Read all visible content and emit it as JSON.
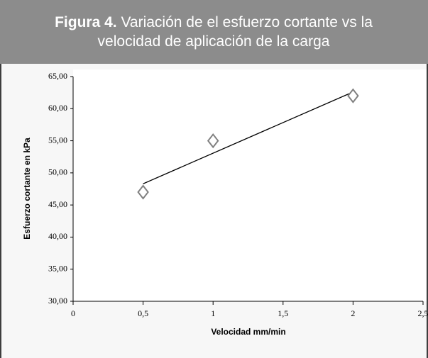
{
  "chart_data": {
    "type": "scatter",
    "figure_label": "Figura 4.",
    "title": "Variación de el esfuerzo cortante vs la velocidad de aplicación de la carga",
    "xlabel": "Velocidad mm/min",
    "ylabel": "Esfuerzo cortante en kPa",
    "series": [
      {
        "color": "#808080",
        "x": [
          0.5,
          1,
          2
        ],
        "values": [
          47,
          55,
          62
        ]
      }
    ],
    "trendline": {
      "color": "#000000",
      "x": [
        0.5,
        2
      ],
      "values": [
        48.3,
        62.6
      ]
    },
    "xlim": [
      0,
      2.5
    ],
    "xticks": [
      0,
      {
        "value": 0.5,
        "label": "0,5"
      },
      1,
      {
        "value": 1.5,
        "label": "1,5"
      },
      2,
      {
        "value": 2.5,
        "label": "2,5"
      }
    ],
    "ylim": [
      30,
      65
    ],
    "yticks": [
      {
        "value": 30,
        "label": "30,00"
      },
      {
        "value": 35,
        "label": "35,00"
      },
      {
        "value": 40,
        "label": "40,00"
      },
      {
        "value": 45,
        "label": "45,00"
      },
      {
        "value": 50,
        "label": "50,00"
      },
      {
        "value": 55,
        "label": "55,00"
      },
      {
        "value": 60,
        "label": "60,00"
      },
      {
        "value": 65,
        "label": "65,00"
      }
    ],
    "grid": false
  }
}
